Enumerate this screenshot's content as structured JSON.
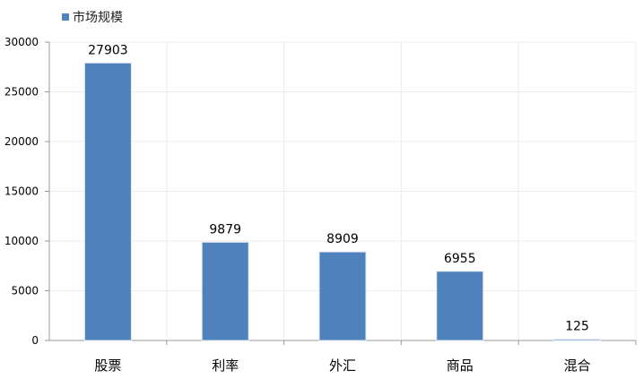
{
  "chart_data": {
    "type": "bar",
    "title": "",
    "xlabel": "",
    "ylabel": "",
    "categories": [
      "股票",
      "利率",
      "外汇",
      "商品",
      "混合"
    ],
    "series": [
      {
        "name": "市场规模",
        "values": [
          27903,
          9879,
          8909,
          6955,
          125
        ],
        "color": "#4F81BD"
      }
    ],
    "ylim": [
      0,
      30000
    ],
    "yticks": [
      0,
      5000,
      10000,
      15000,
      20000,
      25000,
      30000
    ],
    "data_labels": true,
    "grid": true,
    "legend_position": "top-left"
  }
}
